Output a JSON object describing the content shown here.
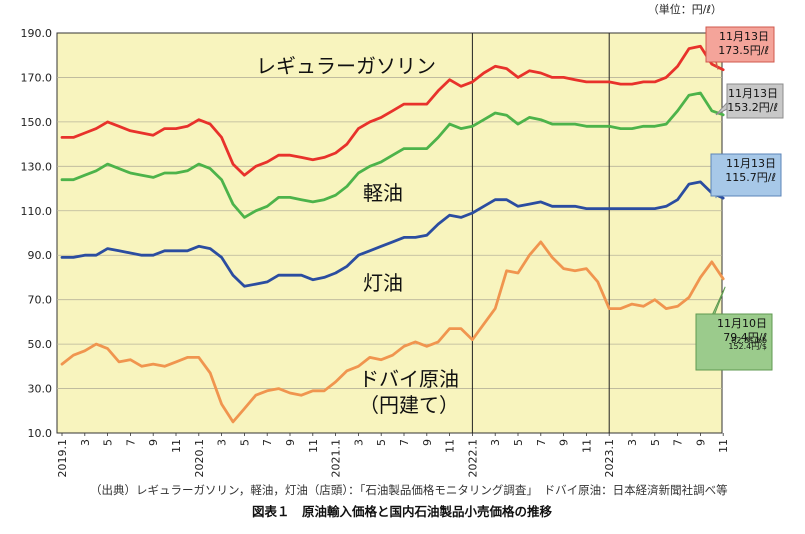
{
  "unit_label": "（単位：円/ℓ）",
  "source_note": "（出典）レギュラーガソリン，軽油，灯油（店頭）：「石油製品価格モニタリング調査」　ドバイ原油：日本経済新聞社調べ等",
  "caption": "図表１　原油輸入価格と国内石油製品小売価格の推移",
  "colors": {
    "background": "#F8F4BE",
    "gasoline": "#E8322B",
    "diesel": "#4DB34A",
    "kerosene": "#2B4DA0",
    "crude": "#F0954F"
  },
  "chart_data": {
    "type": "line",
    "title": "",
    "xlabel": "",
    "ylabel": "",
    "ylim": [
      10,
      190
    ],
    "yticks": [
      "10.0",
      "30.0",
      "50.0",
      "70.0",
      "90.0",
      "110.0",
      "130.0",
      "150.0",
      "170.0",
      "190.0"
    ],
    "grid": true,
    "x": [
      "2019.1",
      "2019.2",
      "2019.3",
      "2019.4",
      "2019.5",
      "2019.6",
      "2019.7",
      "2019.8",
      "2019.9",
      "2019.10",
      "2019.11",
      "2019.12",
      "2020.1",
      "2020.2",
      "2020.3",
      "2020.4",
      "2020.5",
      "2020.6",
      "2020.7",
      "2020.8",
      "2020.9",
      "2020.10",
      "2020.11",
      "2020.12",
      "2021.1",
      "2021.2",
      "2021.3",
      "2021.4",
      "2021.5",
      "2021.6",
      "2021.7",
      "2021.8",
      "2021.9",
      "2021.10",
      "2021.11",
      "2021.12",
      "2022.1",
      "2022.2",
      "2022.3",
      "2022.4",
      "2022.5",
      "2022.6",
      "2022.7",
      "2022.8",
      "2022.9",
      "2022.10",
      "2022.11",
      "2022.12",
      "2023.1",
      "2023.2",
      "2023.3",
      "2023.4",
      "2023.5",
      "2023.6",
      "2023.7",
      "2023.8",
      "2023.9",
      "2023.10",
      "2023.11"
    ],
    "xtick_labels": [
      "2019.1",
      "3",
      "5",
      "7",
      "9",
      "11",
      "2020.1",
      "3",
      "5",
      "7",
      "9",
      "11",
      "2021.1",
      "3",
      "5",
      "7",
      "9",
      "11",
      "2022.1",
      "3",
      "5",
      "7",
      "9",
      "11",
      "2023.1",
      "3",
      "5",
      "7",
      "9",
      "11"
    ],
    "series": [
      {
        "name": "レギュラーガソリン",
        "key": "gasoline",
        "values": [
          143,
          143,
          145,
          147,
          150,
          148,
          146,
          145,
          144,
          147,
          147,
          148,
          151,
          149,
          143,
          131,
          126,
          130,
          132,
          135,
          135,
          134,
          133,
          134,
          136,
          140,
          147,
          150,
          152,
          155,
          158,
          158,
          158,
          164,
          169,
          166,
          168,
          172,
          175,
          174,
          170,
          173,
          172,
          170,
          170,
          169,
          168,
          168,
          168,
          167,
          167,
          168,
          168,
          170,
          175,
          183,
          184,
          176,
          173.5
        ]
      },
      {
        "name": "軽油",
        "key": "diesel",
        "values": [
          124,
          124,
          126,
          128,
          131,
          129,
          127,
          126,
          125,
          127,
          127,
          128,
          131,
          129,
          124,
          113,
          107,
          110,
          112,
          116,
          116,
          115,
          114,
          115,
          117,
          121,
          127,
          130,
          132,
          135,
          138,
          138,
          138,
          143,
          149,
          147,
          148,
          151,
          154,
          153,
          149,
          152,
          151,
          149,
          149,
          149,
          148,
          148,
          148,
          147,
          147,
          148,
          148,
          149,
          155,
          162,
          163,
          155,
          153.2
        ]
      },
      {
        "name": "灯油",
        "key": "kerosene",
        "values": [
          89,
          89,
          90,
          90,
          93,
          92,
          91,
          90,
          90,
          92,
          92,
          92,
          94,
          93,
          89,
          81,
          76,
          77,
          78,
          81,
          81,
          81,
          79,
          80,
          82,
          85,
          90,
          92,
          94,
          96,
          98,
          98,
          99,
          104,
          108,
          107,
          109,
          112,
          115,
          115,
          112,
          113,
          114,
          112,
          112,
          112,
          111,
          111,
          111,
          111,
          111,
          111,
          111,
          112,
          115,
          122,
          123,
          118,
          115.7
        ]
      },
      {
        "name": "ドバイ原油（円建て）",
        "key": "crude",
        "values": [
          41,
          45,
          47,
          50,
          48,
          42,
          43,
          40,
          41,
          40,
          42,
          44,
          44,
          37,
          23,
          15,
          21,
          27,
          29,
          30,
          28,
          27,
          29,
          29,
          33,
          38,
          40,
          44,
          43,
          45,
          49,
          51,
          49,
          51,
          57,
          57,
          52,
          59,
          66,
          83,
          82,
          90,
          96,
          89,
          84,
          83,
          84,
          78,
          66,
          66,
          68,
          67,
          70,
          66,
          67,
          71,
          80,
          87,
          79.4
        ]
      }
    ],
    "series_labels": [
      "レギュラーガソリン",
      "軽油",
      "灯油",
      "ドバイ原油",
      "（円建て）"
    ],
    "annotations": [
      {
        "series": "gasoline",
        "lines": [
          "11月13日",
          "173.5円/ℓ"
        ],
        "bg": "#F4A49A",
        "border": "#D0584C"
      },
      {
        "series": "diesel",
        "lines": [
          "11月13日",
          "153.2円/ℓ"
        ],
        "bg": "#C8C8C8",
        "border": "#8C8C8C"
      },
      {
        "series": "kerosene",
        "lines": [
          "11月13日",
          "115.7円/ℓ"
        ],
        "bg": "#A7C8E8",
        "border": "#5B84B8"
      },
      {
        "series": "crude",
        "lines": [
          "11月10日",
          "79.4円/ℓ",
          "82.8$/bb",
          "152.4円/$"
        ],
        "bg": "#9BCB8C",
        "border": "#5F9A50"
      }
    ]
  }
}
